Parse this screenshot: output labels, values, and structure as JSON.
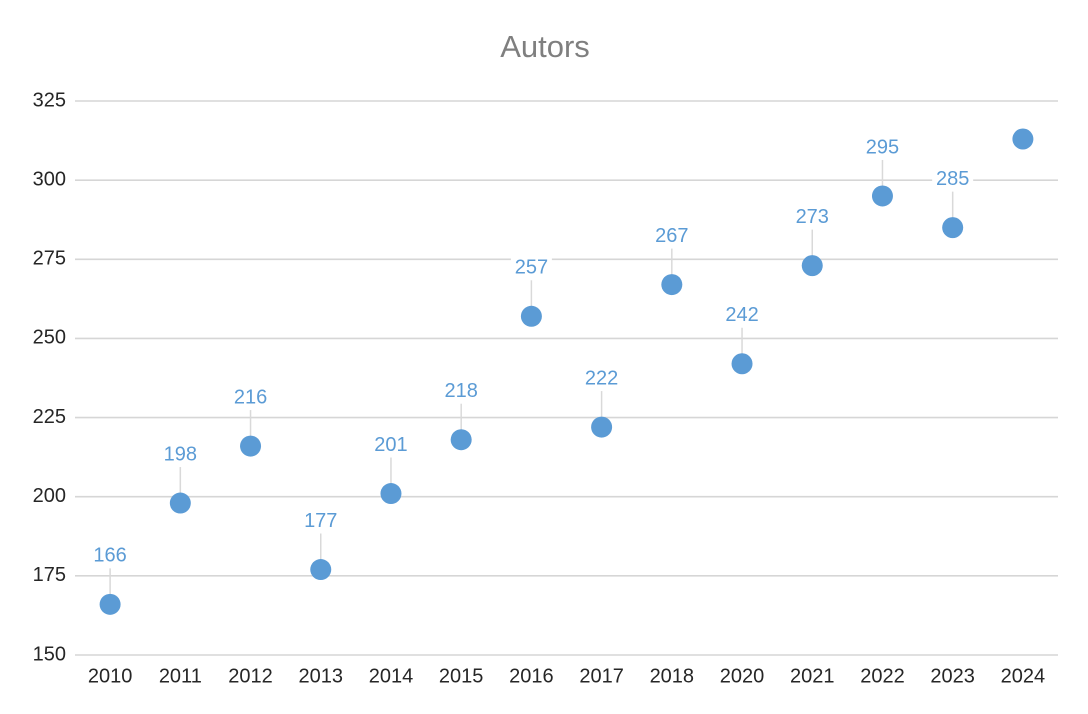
{
  "chart_data": {
    "type": "scatter",
    "title": "Autors",
    "categories": [
      "2010",
      "2011",
      "2012",
      "2013",
      "2014",
      "2015",
      "2016",
      "2017",
      "2018",
      "2020",
      "2021",
      "2022",
      "2023",
      "2024"
    ],
    "values": [
      166,
      198,
      216,
      177,
      201,
      218,
      257,
      222,
      267,
      242,
      273,
      295,
      285,
      313
    ],
    "data_labels": [
      "166",
      "198",
      "216",
      "177",
      "201",
      "218",
      "257",
      "222",
      "267",
      "242",
      "273",
      "295",
      "285",
      ""
    ],
    "xlabel": "",
    "ylabel": "",
    "ylim": [
      150,
      325
    ],
    "ytick_step": 25,
    "ytick_labels": [
      "150",
      "175",
      "200",
      "225",
      "250",
      "275",
      "300",
      "325"
    ],
    "grid": true,
    "legend": false
  },
  "colors": {
    "marker": "#5B9BD5",
    "data_label": "#5B9BD5",
    "gridline": "#D6D6D6",
    "leader_line": "#D9D9D9",
    "tick_label": "#262626",
    "title": "#7F7F7F",
    "background": "#FFFFFF"
  }
}
